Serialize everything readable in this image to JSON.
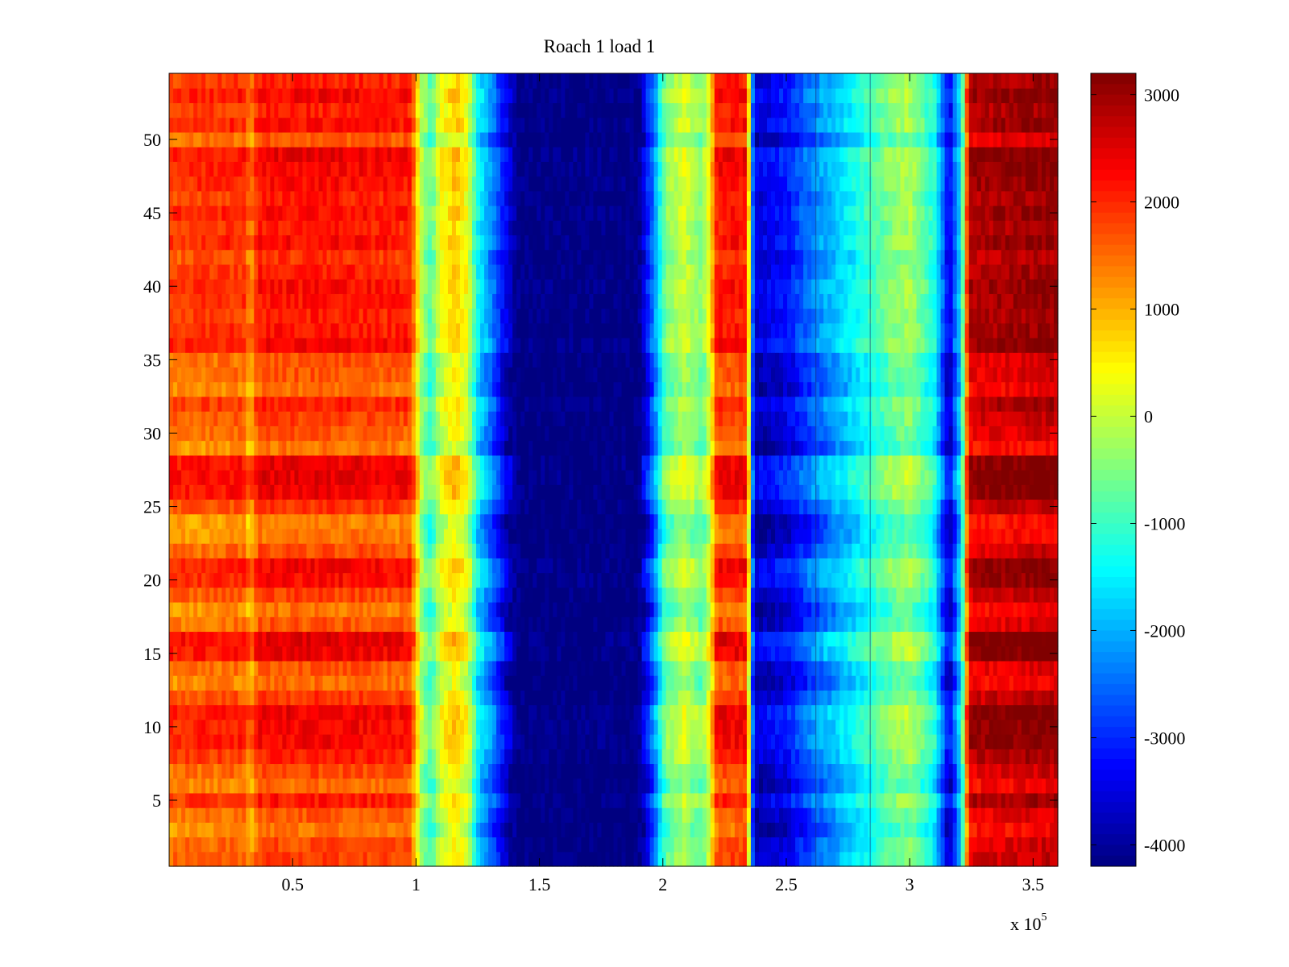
{
  "chart_data": {
    "type": "heatmap",
    "title": "Roach 1 load 1",
    "xlabel": "",
    "ylabel": "",
    "x_scale_note": {
      "base": "x 10",
      "exponent": "5"
    },
    "xlim": [
      0,
      3.6
    ],
    "ylim": [
      0.5,
      54.5
    ],
    "x_ticks": [
      {
        "value": 0.5,
        "label": "0.5"
      },
      {
        "value": 1,
        "label": "1"
      },
      {
        "value": 1.5,
        "label": "1.5"
      },
      {
        "value": 2,
        "label": "2"
      },
      {
        "value": 2.5,
        "label": "2.5"
      },
      {
        "value": 3,
        "label": "3"
      },
      {
        "value": 3.5,
        "label": "3.5"
      }
    ],
    "y_ticks": [
      {
        "value": 5,
        "label": "5"
      },
      {
        "value": 10,
        "label": "10"
      },
      {
        "value": 15,
        "label": "15"
      },
      {
        "value": 20,
        "label": "20"
      },
      {
        "value": 25,
        "label": "25"
      },
      {
        "value": 30,
        "label": "30"
      },
      {
        "value": 35,
        "label": "35"
      },
      {
        "value": 40,
        "label": "40"
      },
      {
        "value": 45,
        "label": "45"
      },
      {
        "value": 50,
        "label": "50"
      }
    ],
    "colormap": "jet",
    "clim": [
      -4200,
      3200
    ],
    "colorbar": {
      "placement": "right",
      "ticks": [
        {
          "value": 3000,
          "label": "3000"
        },
        {
          "value": 2000,
          "label": "2000"
        },
        {
          "value": 1000,
          "label": "1000"
        },
        {
          "value": 0,
          "label": "0"
        },
        {
          "value": -1000,
          "label": "-1000"
        },
        {
          "value": -2000,
          "label": "-2000"
        },
        {
          "value": -3000,
          "label": "-3000"
        },
        {
          "value": -4000,
          "label": "-4000"
        }
      ]
    },
    "rows": 54,
    "column_profile": [
      {
        "x": 0.0,
        "value": 1700
      },
      {
        "x": 0.3,
        "value": 1800
      },
      {
        "x": 0.33,
        "value": 1200
      },
      {
        "x": 0.36,
        "value": 2000
      },
      {
        "x": 0.7,
        "value": 2000
      },
      {
        "x": 0.98,
        "value": 1900
      },
      {
        "x": 1.02,
        "value": -200
      },
      {
        "x": 1.06,
        "value": -900
      },
      {
        "x": 1.1,
        "value": 200
      },
      {
        "x": 1.16,
        "value": 700
      },
      {
        "x": 1.21,
        "value": 200
      },
      {
        "x": 1.25,
        "value": -1500
      },
      {
        "x": 1.31,
        "value": -2500
      },
      {
        "x": 1.37,
        "value": -3600
      },
      {
        "x": 1.42,
        "value": -4200
      },
      {
        "x": 1.9,
        "value": -4200
      },
      {
        "x": 1.96,
        "value": -2600
      },
      {
        "x": 2.01,
        "value": -600
      },
      {
        "x": 2.09,
        "value": 0
      },
      {
        "x": 2.16,
        "value": -600
      },
      {
        "x": 2.19,
        "value": 300
      },
      {
        "x": 2.22,
        "value": 2000
      },
      {
        "x": 2.34,
        "value": 2000
      },
      {
        "x": 2.37,
        "value": -3700
      },
      {
        "x": 2.5,
        "value": -3300
      },
      {
        "x": 2.62,
        "value": -2400
      },
      {
        "x": 2.76,
        "value": -1600
      },
      {
        "x": 2.84,
        "value": -1100
      },
      {
        "x": 2.92,
        "value": -600
      },
      {
        "x": 3.0,
        "value": -300
      },
      {
        "x": 3.1,
        "value": -1300
      },
      {
        "x": 3.16,
        "value": -3600
      },
      {
        "x": 3.21,
        "value": -1500
      },
      {
        "x": 3.24,
        "value": 2700
      },
      {
        "x": 3.6,
        "value": 2900
      }
    ],
    "row_offsets": [
      200,
      100,
      -300,
      0,
      600,
      -200,
      100,
      500,
      800,
      800,
      900,
      300,
      -200,
      0,
      900,
      1000,
      0,
      -300,
      200,
      700,
      800,
      100,
      -300,
      -400,
      300,
      900,
      1000,
      900,
      -300,
      0,
      200,
      500,
      -200,
      0,
      0,
      800,
      600,
      500,
      600,
      700,
      500,
      300,
      700,
      500,
      700,
      500,
      700,
      800,
      900,
      0,
      700,
      500,
      800,
      500
    ],
    "vertical_lines_x": [
      2.62,
      2.84
    ]
  }
}
